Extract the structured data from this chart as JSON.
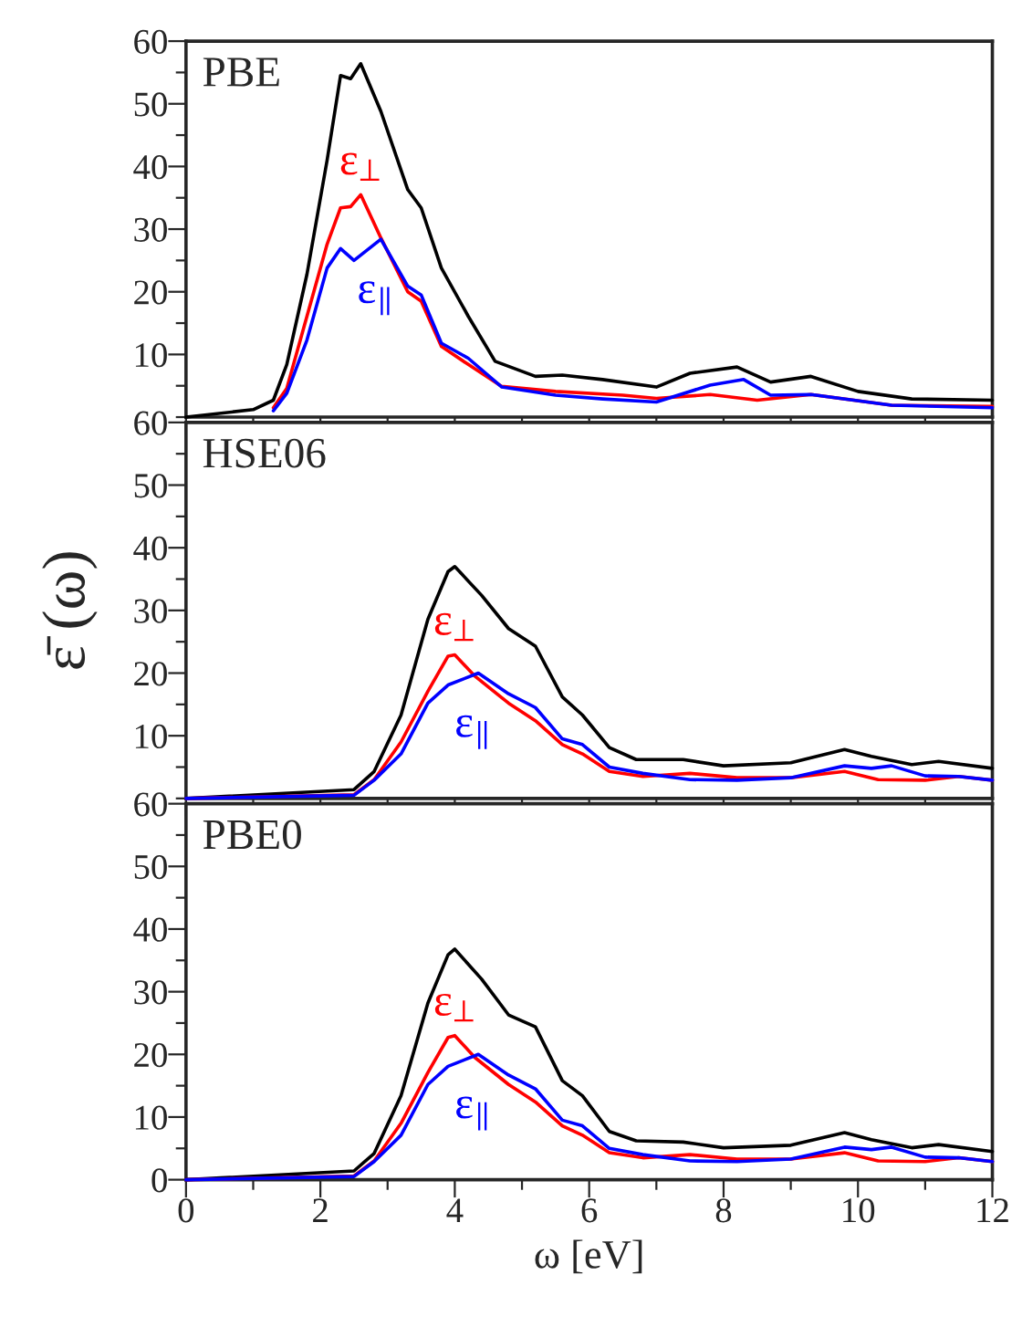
{
  "chart_data": [
    {
      "type": "line",
      "title": "PBE",
      "tick_labels": "y",
      "xlim": [
        0,
        12
      ],
      "ylim": [
        0,
        60
      ],
      "xticks": [
        0,
        {
          "value": 1,
          "label": null
        },
        2,
        {
          "value": 3,
          "label": null
        },
        4,
        {
          "value": 5,
          "label": null
        },
        6,
        {
          "value": 7,
          "label": null
        },
        8,
        {
          "value": 9,
          "label": null
        },
        10,
        {
          "value": 11,
          "label": null
        },
        12
      ],
      "yticks": [
        {
          "value": 0,
          "label": null
        },
        {
          "value": 5,
          "label": null
        },
        10,
        {
          "value": 15,
          "label": null
        },
        20,
        {
          "value": 25,
          "label": null
        },
        30,
        {
          "value": 35,
          "label": null
        },
        40,
        {
          "value": 45,
          "label": null
        },
        50,
        {
          "value": 55,
          "label": null
        },
        60
      ],
      "annotations": [
        "ε$_{⊥}$",
        "ε$_{∥}$"
      ],
      "series": [
        {
          "color": "#000000",
          "x": [
            0,
            1,
            1.3,
            1.5,
            1.8,
            2.1,
            2.3,
            2.45,
            2.6,
            2.9,
            3.3,
            3.5,
            3.8,
            4.2,
            4.6,
            5.2,
            5.6,
            6.2,
            7.0,
            7.5,
            8.2,
            8.7,
            9.3,
            10,
            10.8,
            12
          ],
          "values": [
            0,
            1.2,
            2.7,
            8.4,
            22.8,
            41,
            54.5,
            54,
            56.4,
            48.8,
            36.3,
            33.4,
            23.8,
            16.1,
            8.9,
            6.5,
            6.7,
            6,
            4.8,
            7,
            8,
            5.6,
            6.5,
            4.1,
            2.9,
            2.7
          ]
        },
        {
          "color": "#ff0000",
          "x": [
            1.3,
            1.5,
            1.8,
            2.1,
            2.3,
            2.45,
            2.6,
            2.9,
            3.3,
            3.5,
            3.8,
            4.2,
            4.7,
            5.5,
            6.5,
            7.0,
            7.8,
            8.5,
            9.3,
            10.5,
            12
          ],
          "values": [
            1.5,
            4.6,
            16.1,
            27.6,
            33.4,
            33.6,
            35.5,
            28.6,
            20,
            18.5,
            11.3,
            8.4,
            4.9,
            4.1,
            3.5,
            3,
            3.6,
            2.7,
            3.6,
            1.9,
            1.7
          ]
        },
        {
          "color": "#0000ff",
          "x": [
            1.3,
            1.5,
            1.8,
            2.1,
            2.3,
            2.5,
            2.9,
            3.3,
            3.5,
            3.8,
            4.2,
            4.7,
            5.5,
            6.2,
            7.0,
            7.8,
            8.3,
            8.7,
            9.3,
            10.5,
            12
          ],
          "values": [
            1,
            3.8,
            12.3,
            23.8,
            26.9,
            25,
            28.4,
            20.9,
            19.5,
            11.8,
            9.4,
            4.8,
            3.5,
            2.9,
            2.4,
            5.1,
            6,
            3.5,
            3.6,
            1.9,
            1.5
          ]
        }
      ]
    },
    {
      "type": "line",
      "title": "HSE06",
      "ylabel": "ε̄ (ω)",
      "tick_labels": "y",
      "xlim": [
        0,
        12
      ],
      "ylim": [
        0,
        60
      ],
      "xticks": [
        0,
        {
          "value": 1,
          "label": null
        },
        2,
        {
          "value": 3,
          "label": null
        },
        4,
        {
          "value": 5,
          "label": null
        },
        6,
        {
          "value": 7,
          "label": null
        },
        8,
        {
          "value": 9,
          "label": null
        },
        10,
        {
          "value": 11,
          "label": null
        },
        12
      ],
      "yticks": [
        {
          "value": 0,
          "label": null
        },
        {
          "value": 5,
          "label": null
        },
        10,
        {
          "value": 15,
          "label": null
        },
        20,
        {
          "value": 25,
          "label": null
        },
        30,
        {
          "value": 35,
          "label": null
        },
        40,
        {
          "value": 45,
          "label": null
        },
        50,
        {
          "value": 55,
          "label": null
        },
        60
      ],
      "annotations": [
        "ε$_{⊥}$",
        "ε$_{∥}$"
      ],
      "series": [
        {
          "color": "#000000",
          "x": [
            0,
            2.5,
            2.8,
            3.2,
            3.6,
            3.9,
            4.0,
            4.4,
            4.8,
            5.2,
            5.6,
            5.9,
            6.3,
            6.7,
            7.4,
            8.0,
            9.0,
            9.8,
            10.2,
            10.8,
            11.2,
            12
          ],
          "values": [
            0,
            1.4,
            4.3,
            13.3,
            28.6,
            36.2,
            37,
            32.4,
            27.1,
            24.3,
            16.2,
            13.3,
            8.1,
            6.2,
            6.2,
            5.2,
            5.7,
            7.8,
            6.7,
            5.4,
            5.9,
            4.8
          ]
        },
        {
          "color": "#ff0000",
          "x": [
            0,
            2.5,
            2.8,
            3.2,
            3.6,
            3.9,
            4.0,
            4.3,
            4.8,
            5.2,
            5.6,
            5.9,
            6.3,
            6.8,
            7.5,
            8.2,
            9.0,
            9.8,
            10.3,
            11.0,
            11.5,
            12
          ],
          "values": [
            0,
            0.6,
            3,
            9,
            17.1,
            22.7,
            22.9,
            19.5,
            15.2,
            12.4,
            8.6,
            7.1,
            4.3,
            3.5,
            4,
            3.3,
            3.3,
            4.3,
            3,
            2.9,
            3.5,
            2.9
          ]
        },
        {
          "color": "#0000ff",
          "x": [
            0,
            2.5,
            2.8,
            3.2,
            3.6,
            3.9,
            4.35,
            4.8,
            5.2,
            5.6,
            5.9,
            6.3,
            6.8,
            7.5,
            8.2,
            9.0,
            9.8,
            10.2,
            10.5,
            11.0,
            11.5,
            12
          ],
          "values": [
            0,
            0.5,
            2.9,
            7.1,
            15.2,
            18.1,
            20,
            16.7,
            14.5,
            9.5,
            8.6,
            5,
            4,
            3,
            2.9,
            3.3,
            5.2,
            4.8,
            5.2,
            3.6,
            3.5,
            2.9
          ]
        }
      ]
    },
    {
      "type": "line",
      "title": "PBE0",
      "xlabel": "ω [eV]",
      "xlim": [
        0,
        12
      ],
      "ylim": [
        0,
        60
      ],
      "xticks": [
        0,
        {
          "value": 1,
          "label": null
        },
        2,
        {
          "value": 3,
          "label": null
        },
        4,
        {
          "value": 5,
          "label": null
        },
        6,
        {
          "value": 7,
          "label": null
        },
        8,
        {
          "value": 9,
          "label": null
        },
        10,
        {
          "value": 11,
          "label": null
        },
        12
      ],
      "yticks": [
        0,
        {
          "value": 5,
          "label": null
        },
        10,
        {
          "value": 15,
          "label": null
        },
        20,
        {
          "value": 25,
          "label": null
        },
        30,
        {
          "value": 35,
          "label": null
        },
        40,
        {
          "value": 45,
          "label": null
        },
        50,
        {
          "value": 55,
          "label": null
        },
        60
      ],
      "annotations": [
        "ε$_{⊥}$",
        "ε$_{∥}$"
      ],
      "series": [
        {
          "color": "#000000",
          "x": [
            0,
            2.5,
            2.8,
            3.2,
            3.6,
            3.9,
            4.0,
            4.4,
            4.8,
            5.2,
            5.6,
            5.9,
            6.3,
            6.7,
            7.4,
            8.0,
            9.0,
            9.8,
            10.2,
            10.8,
            11.2,
            12
          ],
          "values": [
            0,
            1.4,
            4.2,
            13.4,
            28.2,
            35.9,
            36.8,
            32,
            26.3,
            24.4,
            15.8,
            13.4,
            7.7,
            6.2,
            6,
            5.1,
            5.5,
            7.5,
            6.4,
            5.1,
            5.6,
            4.5
          ]
        },
        {
          "color": "#ff0000",
          "x": [
            0,
            2.5,
            2.8,
            3.2,
            3.6,
            3.9,
            4.0,
            4.3,
            4.8,
            5.2,
            5.6,
            5.9,
            6.3,
            6.8,
            7.5,
            8.2,
            9.0,
            9.8,
            10.3,
            11.0,
            11.5,
            12
          ],
          "values": [
            0,
            0.6,
            3,
            9,
            17.1,
            22.7,
            23,
            19.5,
            15.2,
            12.4,
            8.6,
            7.1,
            4.3,
            3.5,
            4,
            3.3,
            3.3,
            4.3,
            3,
            2.9,
            3.5,
            2.9
          ]
        },
        {
          "color": "#0000ff",
          "x": [
            0,
            2.5,
            2.8,
            3.2,
            3.6,
            3.9,
            4.35,
            4.8,
            5.2,
            5.6,
            5.9,
            6.3,
            6.8,
            7.5,
            8.2,
            9.0,
            9.8,
            10.2,
            10.5,
            11.0,
            11.5,
            12
          ],
          "values": [
            0,
            0.5,
            2.9,
            7.1,
            15.2,
            18.1,
            20,
            16.7,
            14.5,
            9.5,
            8.6,
            5,
            4,
            3,
            2.9,
            3.3,
            5.2,
            4.8,
            5.2,
            3.6,
            3.5,
            2.9
          ]
        }
      ]
    }
  ]
}
